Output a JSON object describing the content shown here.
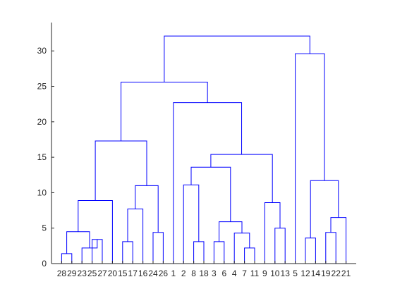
{
  "chart_data": {
    "type": "dendrogram",
    "title": "",
    "xlabel": "",
    "ylabel": "",
    "ylim": [
      0,
      34
    ],
    "yticks": [
      0,
      5,
      10,
      15,
      20,
      25,
      30
    ],
    "grid": false,
    "link_color": "#0000ff",
    "axis_color": "#262626",
    "leaf_order": [
      "28",
      "29",
      "23",
      "25",
      "27",
      "20",
      "15",
      "17",
      "16",
      "24",
      "26",
      "1",
      "2",
      "8",
      "18",
      "3",
      "6",
      "4",
      "7",
      "11",
      "9",
      "10",
      "13",
      "5",
      "12",
      "14",
      "19",
      "22",
      "21"
    ],
    "merges": [
      {
        "a": "28",
        "b": "29",
        "height": 1.4
      },
      {
        "a": "25",
        "b": "27",
        "height": 3.4
      },
      {
        "a": "23",
        "b": "m2",
        "height": 2.2
      },
      {
        "a": "m1",
        "b": "m3",
        "height": 4.5
      },
      {
        "a": "m4",
        "b": "20",
        "height": 8.9
      },
      {
        "a": "15",
        "b": "17",
        "height": 3.1
      },
      {
        "a": "m6",
        "b": "16",
        "height": 7.7
      },
      {
        "a": "24",
        "b": "26",
        "height": 4.4
      },
      {
        "a": "m7",
        "b": "m8",
        "height": 11.0
      },
      {
        "a": "m5",
        "b": "m9",
        "height": 17.3
      },
      {
        "a": "8",
        "b": "18",
        "height": 3.1
      },
      {
        "a": "2",
        "b": "m11",
        "height": 11.1
      },
      {
        "a": "7",
        "b": "11",
        "height": 2.2
      },
      {
        "a": "4",
        "b": "m13",
        "height": 4.3
      },
      {
        "a": "3",
        "b": "6",
        "height": 3.1
      },
      {
        "a": "m15",
        "b": "m14",
        "height": 5.9
      },
      {
        "a": "m12",
        "b": "m16",
        "height": 13.6
      },
      {
        "a": "10",
        "b": "13",
        "height": 5.0
      },
      {
        "a": "9",
        "b": "m18",
        "height": 8.6
      },
      {
        "a": "m17",
        "b": "m19",
        "height": 15.4
      },
      {
        "a": "1",
        "b": "m20",
        "height": 22.7
      },
      {
        "a": "m10",
        "b": "m21",
        "height": 25.6
      },
      {
        "a": "12",
        "b": "14",
        "height": 3.6
      },
      {
        "a": "19",
        "b": "22",
        "height": 4.4
      },
      {
        "a": "m24",
        "b": "21",
        "height": 6.5
      },
      {
        "a": "m23",
        "b": "m25",
        "height": 11.7
      },
      {
        "a": "5",
        "b": "m26",
        "height": 29.6
      },
      {
        "a": "m22",
        "b": "m27",
        "height": 32.1
      }
    ]
  }
}
